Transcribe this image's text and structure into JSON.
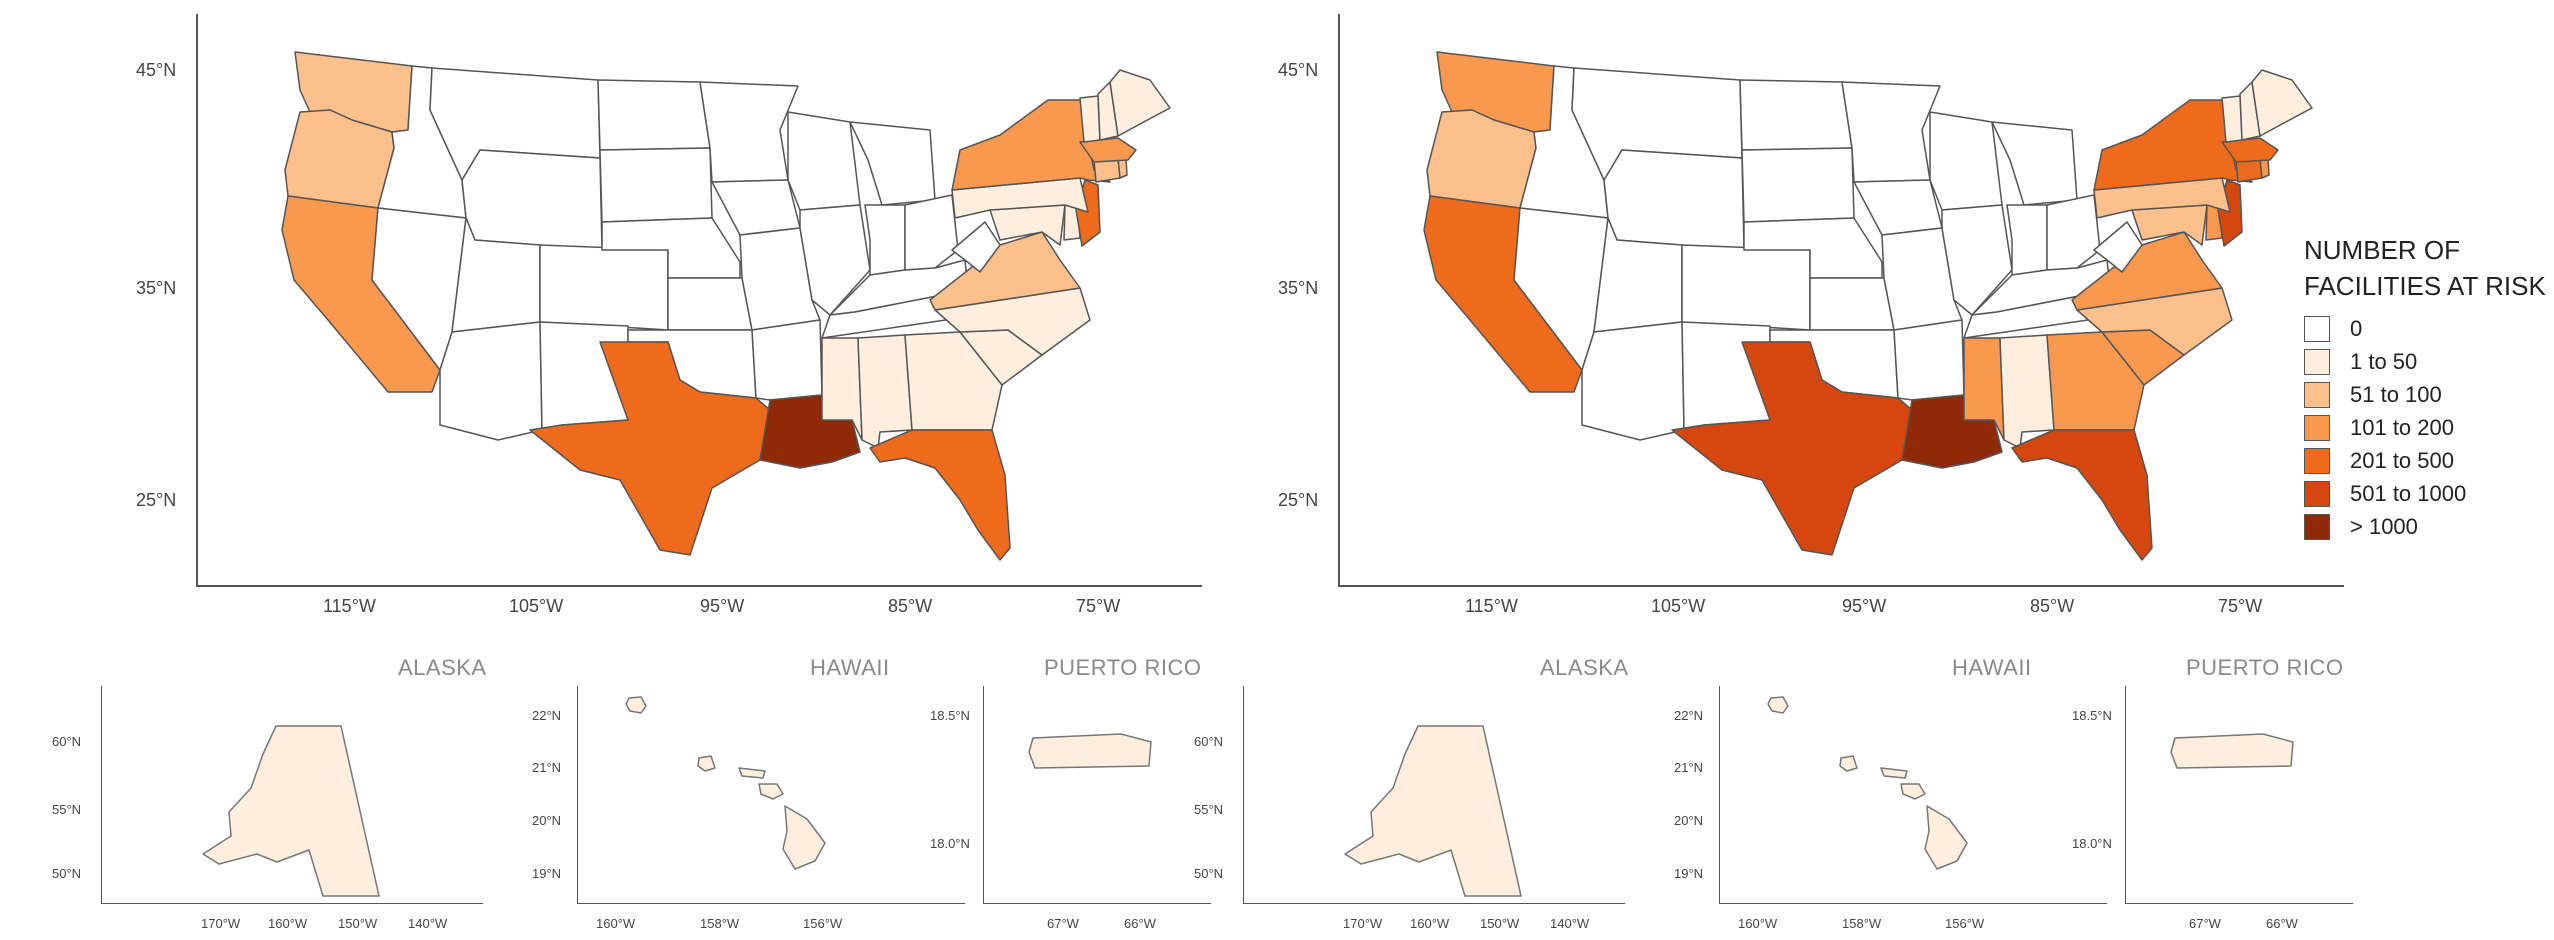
{
  "colors": {
    "c0": "#ffffff",
    "c1": "#fdeede",
    "c2": "#fbc08c",
    "c3": "#f9984f",
    "c4": "#ee6a1c",
    "c5": "#d5470f",
    "c6": "#8f2a08",
    "outline": "#555555"
  },
  "legend": {
    "title_line1": "NUMBER OF",
    "title_line2": "FACILITIES AT RISK",
    "items": [
      {
        "label": "0",
        "color_key": "c0"
      },
      {
        "label": "1 to 50",
        "color_key": "c1"
      },
      {
        "label": "51 to 100",
        "color_key": "c2"
      },
      {
        "label": "101 to 200",
        "color_key": "c3"
      },
      {
        "label": "201 to 500",
        "color_key": "c4"
      },
      {
        "label": "501 to 1000",
        "color_key": "c5"
      },
      {
        "label": "> 1000",
        "color_key": "c6"
      }
    ]
  },
  "main_axes": {
    "lat_labels": [
      "45°N",
      "35°N",
      "25°N"
    ],
    "lon_labels": [
      "115°W",
      "105°W",
      "95°W",
      "85°W",
      "75°W"
    ]
  },
  "alaska": {
    "title": "ALASKA",
    "lat_labels": [
      "60°N",
      "55°N",
      "50°N"
    ],
    "lon_labels": [
      "170°W",
      "160°W",
      "150°W",
      "140°W"
    ]
  },
  "hawaii": {
    "title": "HAWAII",
    "lat_labels": [
      "22°N",
      "21°N",
      "20°N",
      "19°N"
    ],
    "lon_labels": [
      "160°W",
      "158°W",
      "156°W"
    ]
  },
  "puerto_rico": {
    "title": "PUERTO RICO",
    "lat_labels": [
      "18.5°N",
      "18.0°N"
    ],
    "lon_labels": [
      "67°W",
      "66°W"
    ]
  },
  "maps": [
    {
      "regions": {
        "washington": "c2",
        "oregon": "c2",
        "california": "c3",
        "texas": "c4",
        "louisiana": "c6",
        "mississippi": "c1",
        "alabama": "c1",
        "georgia": "c1",
        "florida": "c4",
        "south_carolina": "c1",
        "north_carolina": "c1",
        "virginia": "c2",
        "maryland": "c1",
        "delaware": "c1",
        "new_jersey": "c4",
        "pennsylvania": "c1",
        "new_york": "c3",
        "connecticut": "c2",
        "rhode_island": "c2",
        "massachusetts": "c3",
        "vermont": "c1",
        "new_hampshire": "c1",
        "maine": "c1",
        "alaska": "c1",
        "hawaii": "c1",
        "puerto_rico": "c1"
      }
    },
    {
      "regions": {
        "washington": "c3",
        "oregon": "c2",
        "california": "c4",
        "texas": "c5",
        "louisiana": "c6",
        "mississippi": "c3",
        "alabama": "c1",
        "georgia": "c3",
        "florida": "c5",
        "south_carolina": "c3",
        "north_carolina": "c2",
        "virginia": "c3",
        "maryland": "c2",
        "delaware": "c3",
        "new_jersey": "c5",
        "pennsylvania": "c2",
        "new_york": "c4",
        "connecticut": "c4",
        "rhode_island": "c3",
        "massachusetts": "c4",
        "vermont": "c1",
        "new_hampshire": "c1",
        "maine": "c1",
        "alaska": "c1",
        "hawaii": "c1",
        "puerto_rico": "c1"
      }
    }
  ]
}
